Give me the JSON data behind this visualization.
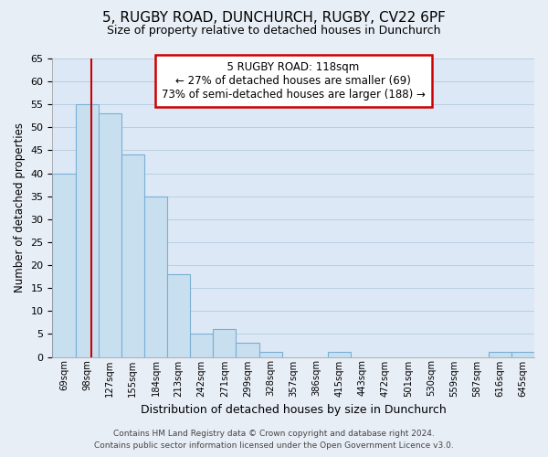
{
  "title": "5, RUGBY ROAD, DUNCHURCH, RUGBY, CV22 6PF",
  "subtitle": "Size of property relative to detached houses in Dunchurch",
  "xlabel": "Distribution of detached houses by size in Dunchurch",
  "ylabel": "Number of detached properties",
  "bar_labels": [
    "69sqm",
    "98sqm",
    "127sqm",
    "155sqm",
    "184sqm",
    "213sqm",
    "242sqm",
    "271sqm",
    "299sqm",
    "328sqm",
    "357sqm",
    "386sqm",
    "415sqm",
    "443sqm",
    "472sqm",
    "501sqm",
    "530sqm",
    "559sqm",
    "587sqm",
    "616sqm",
    "645sqm"
  ],
  "bar_heights": [
    40,
    55,
    53,
    44,
    35,
    18,
    5,
    6,
    3,
    1,
    0,
    0,
    1,
    0,
    0,
    0,
    0,
    0,
    0,
    1,
    1
  ],
  "bar_color": "#c8dff0",
  "bar_edge_color": "#7aafd4",
  "property_line_label": "5 RUGBY ROAD: 118sqm",
  "annotation_line1": "← 27% of detached houses are smaller (69)",
  "annotation_line2": "73% of semi-detached houses are larger (188) →",
  "vline_color": "#cc0000",
  "annotation_box_edge": "#cc0000",
  "ylim": [
    0,
    65
  ],
  "yticks": [
    0,
    5,
    10,
    15,
    20,
    25,
    30,
    35,
    40,
    45,
    50,
    55,
    60,
    65
  ],
  "footer1": "Contains HM Land Registry data © Crown copyright and database right 2024.",
  "footer2": "Contains public sector information licensed under the Open Government Licence v3.0.",
  "bg_color": "#e8eef6",
  "plot_bg_color": "#dce8f5"
}
